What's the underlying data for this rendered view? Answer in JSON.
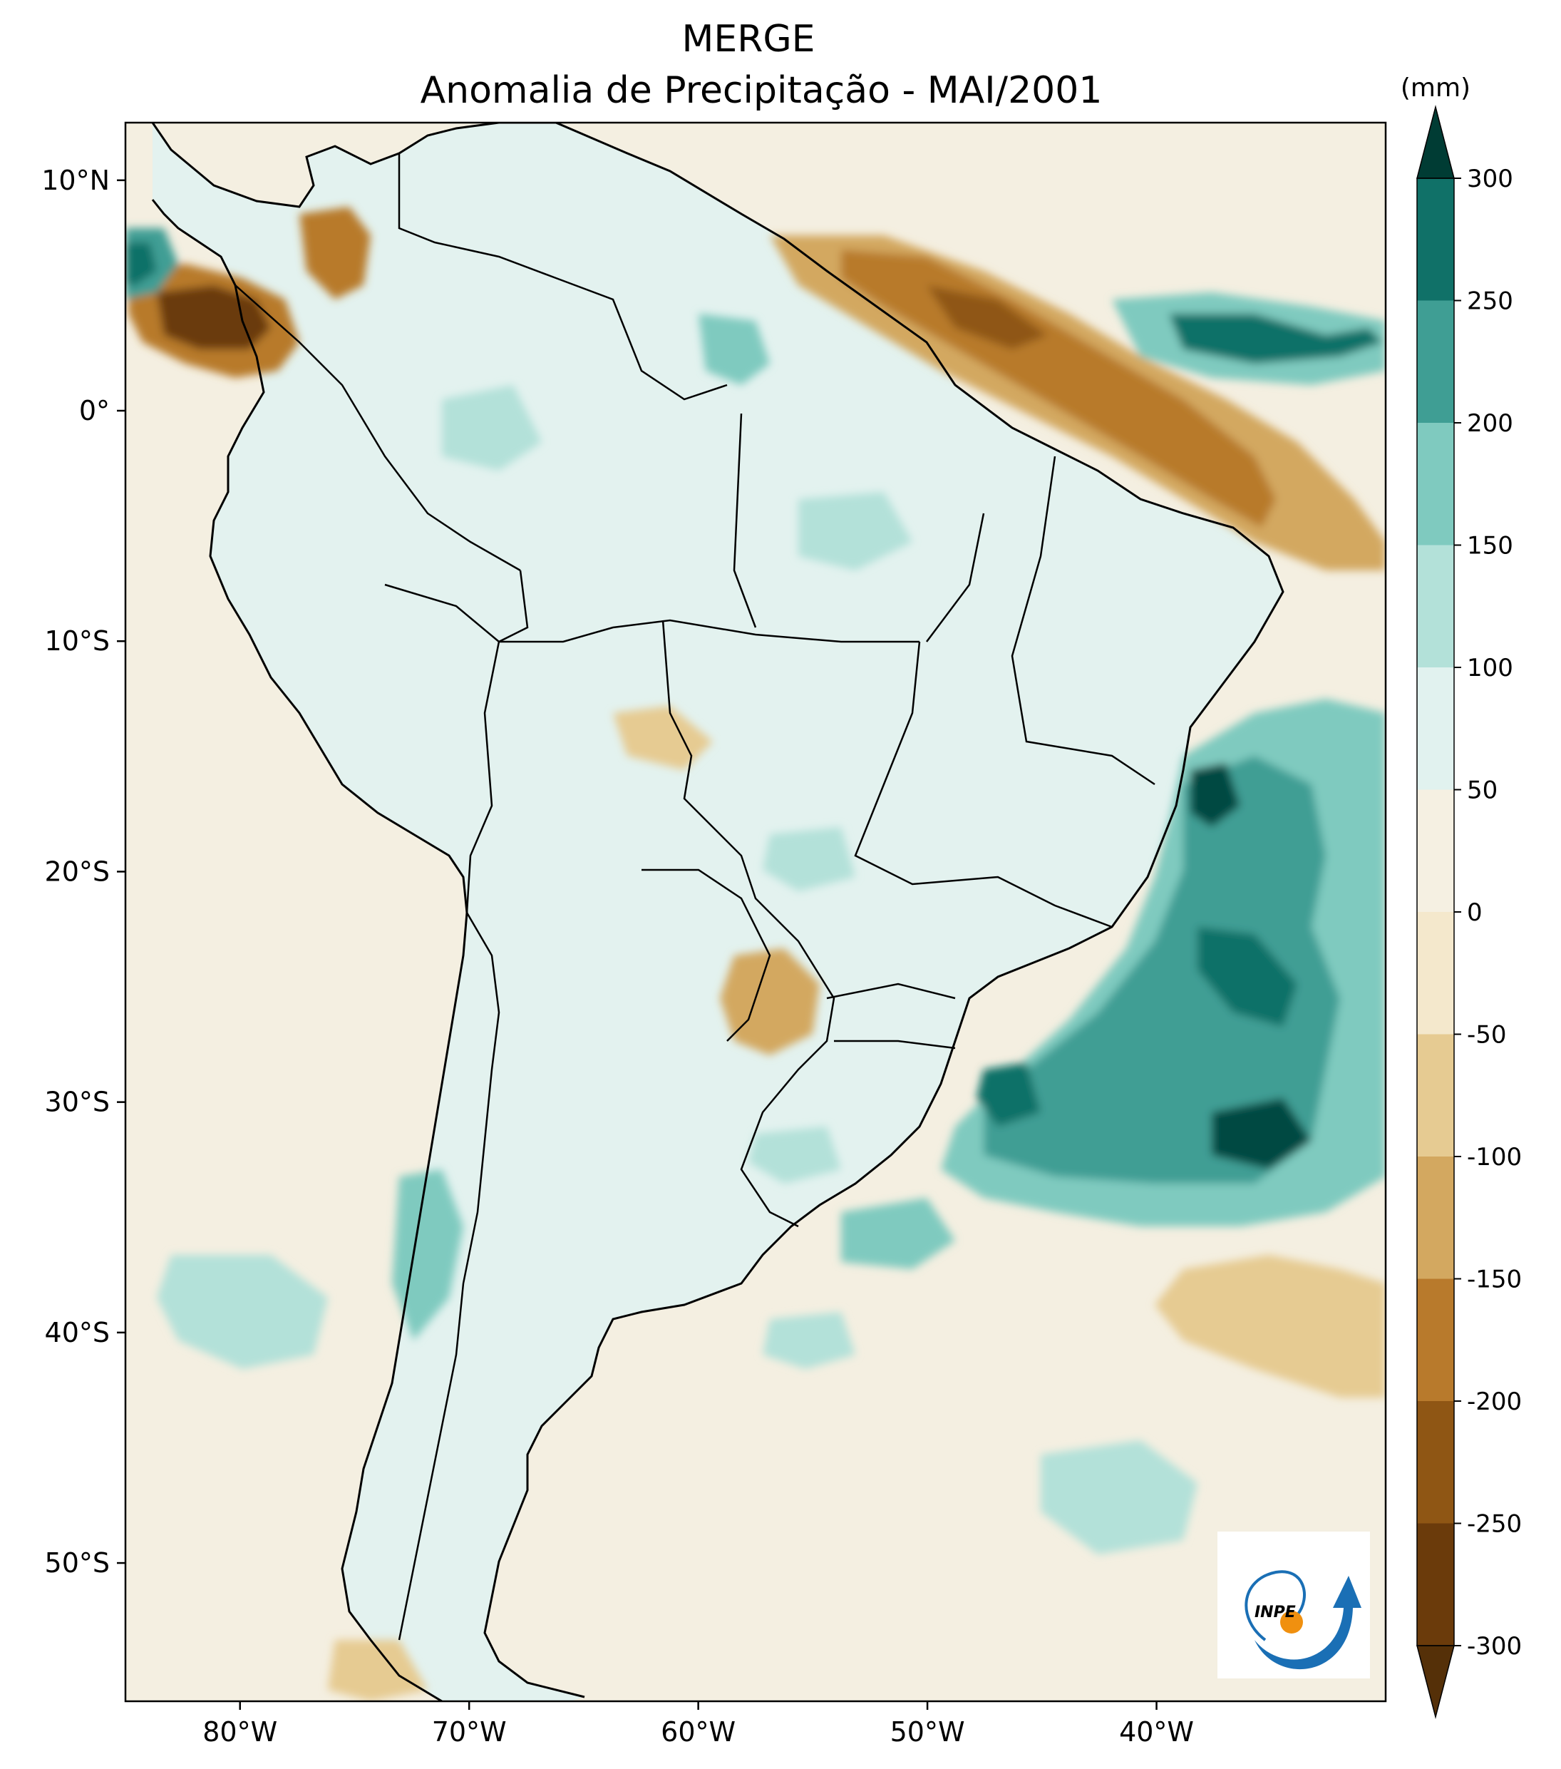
{
  "title": {
    "line1": "MERGE",
    "line2": "Anomalia de Precipitação - MAI/2001"
  },
  "map": {
    "region": "South America",
    "lon_range": [
      -85,
      -30
    ],
    "lat_range": [
      -56,
      12.5
    ],
    "x_ticks": [
      {
        "lon": -80,
        "label": "80°W"
      },
      {
        "lon": -70,
        "label": "70°W"
      },
      {
        "lon": -60,
        "label": "60°W"
      },
      {
        "lon": -50,
        "label": "50°W"
      },
      {
        "lon": -40,
        "label": "40°W"
      }
    ],
    "y_ticks": [
      {
        "lat": 10,
        "label": "10°N"
      },
      {
        "lat": 0,
        "label": "0°"
      },
      {
        "lat": -10,
        "label": "10°S"
      },
      {
        "lat": -20,
        "label": "20°S"
      },
      {
        "lat": -30,
        "label": "30°S"
      },
      {
        "lat": -40,
        "label": "40°S"
      },
      {
        "lat": -50,
        "label": "50°S"
      }
    ]
  },
  "colorbar": {
    "unit_label": "(mm)",
    "levels": [
      -300,
      -250,
      -200,
      -150,
      -100,
      -50,
      0,
      50,
      100,
      150,
      200,
      250,
      300
    ],
    "labels": [
      "-300",
      "-250",
      "-200",
      "-150",
      "-100",
      "-50",
      "0",
      "50",
      "100",
      "150",
      "200",
      "250",
      "300"
    ],
    "colors": [
      "#6b3b0b",
      "#8f5614",
      "#b87a2c",
      "#d3a860",
      "#e6cb92",
      "#f4e8cc",
      "#f5f0e2",
      "#e1f2ef",
      "#b3e1d9",
      "#7fcabf",
      "#3f9e94",
      "#107168",
      "#024a42"
    ],
    "under_color": "#553008",
    "over_color": "#003c34"
  },
  "logo": {
    "text": "INPE"
  },
  "colors": {
    "ocean_base": "#f4efe1",
    "land_base": "#e3f2ef",
    "coast": "#000000",
    "frame": "#000000"
  }
}
